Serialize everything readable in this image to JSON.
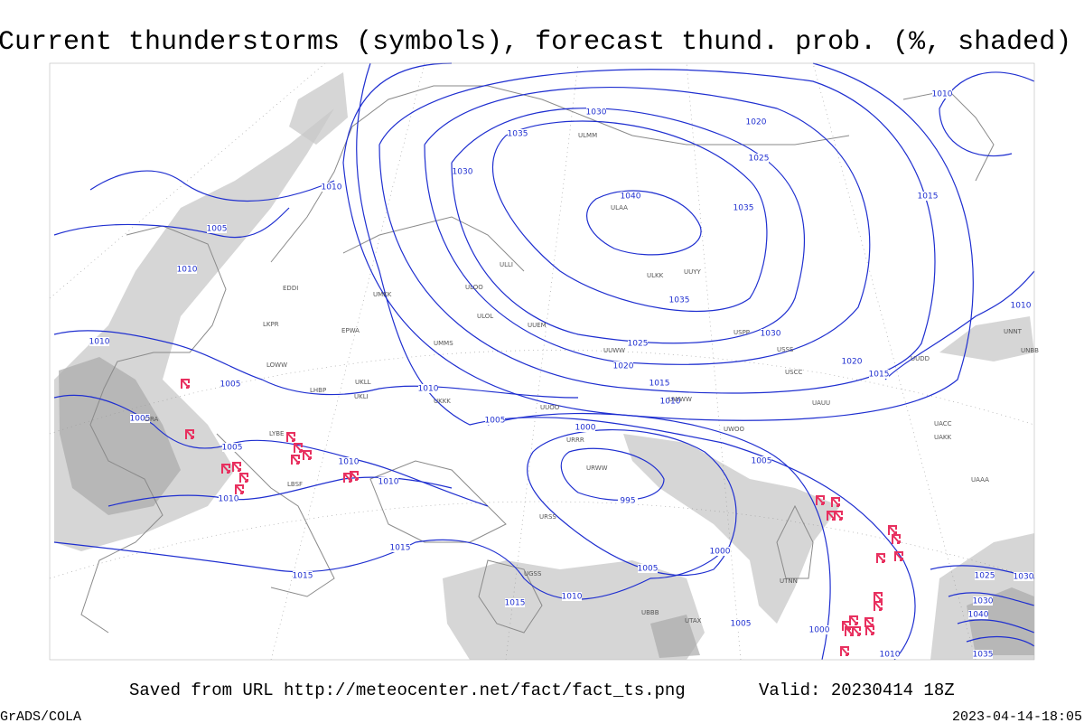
{
  "header": {
    "title": "Current thunderstorms (symbols), forecast thund. prob. (%, shaded)"
  },
  "footer": {
    "source": "Saved from URL http://meteocenter.net/fact/fact_ts.png",
    "valid": "Valid: 20230414 18Z",
    "software": "GrADS/COLA",
    "timestamp": "2023-04-14-18:05"
  },
  "map": {
    "isobar_labels": [
      1030,
      1020,
      1035,
      1025,
      1030,
      1040,
      1035,
      1010,
      1005,
      1010,
      1035,
      1030,
      1025,
      1020,
      1015,
      1010,
      1010,
      1010,
      1005,
      1005,
      1005,
      1010,
      1010,
      1010,
      1005,
      1000,
      995,
      1005,
      1000,
      1005,
      1015,
      1015,
      1015,
      1010,
      1005,
      1000,
      1010,
      1015,
      1020,
      1015,
      1010,
      1010,
      1025,
      1030,
      1030,
      1040,
      1035
    ],
    "station_labels": [
      "ULLI",
      "ULOO",
      "UUEM",
      "UUWW",
      "ULAA",
      "ULMM",
      "ULOL",
      "UMMS",
      "UMKK",
      "EPWA",
      "LKPR",
      "LOWW",
      "LHBP",
      "UKLL",
      "UKLI",
      "UKKK",
      "URRR",
      "URSS",
      "URWW",
      "ULKK",
      "UUYY",
      "USSS",
      "USCC",
      "UAUU",
      "UACC",
      "UAKK",
      "UAAA",
      "UTNN",
      "UUDD",
      "UNBB",
      "UNNT",
      "USPP",
      "UWOO",
      "UTAX",
      "UBBB",
      "UGSS",
      "UWWW",
      "LBSF",
      "LYBE",
      "LIRA",
      "EDDI",
      "UUOO"
    ]
  }
}
